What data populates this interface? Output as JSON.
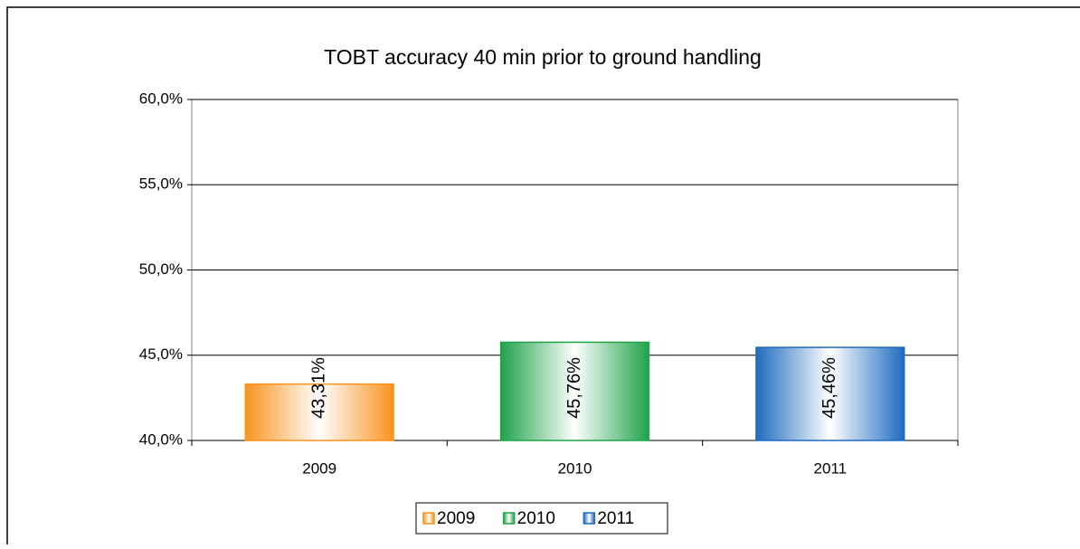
{
  "chart_data": {
    "type": "bar",
    "title": "TOBT accuracy 40 min prior to ground handling",
    "categories": [
      "2009",
      "2010",
      "2011"
    ],
    "values": [
      43.31,
      45.76,
      45.46
    ],
    "value_labels": [
      "43,31%",
      "45,76%",
      "45,46%"
    ],
    "colors": [
      "#f7931e",
      "#1fa34a",
      "#1f6bbf"
    ],
    "ylim": [
      40,
      60
    ],
    "yticks": [
      {
        "value": 40,
        "label": "40,0%"
      },
      {
        "value": 45,
        "label": "45,0%"
      },
      {
        "value": 50,
        "label": "50,0%"
      },
      {
        "value": 55,
        "label": "55,0%"
      },
      {
        "value": 60,
        "label": "60,0%"
      }
    ],
    "grid": true,
    "legend": "bottom"
  }
}
